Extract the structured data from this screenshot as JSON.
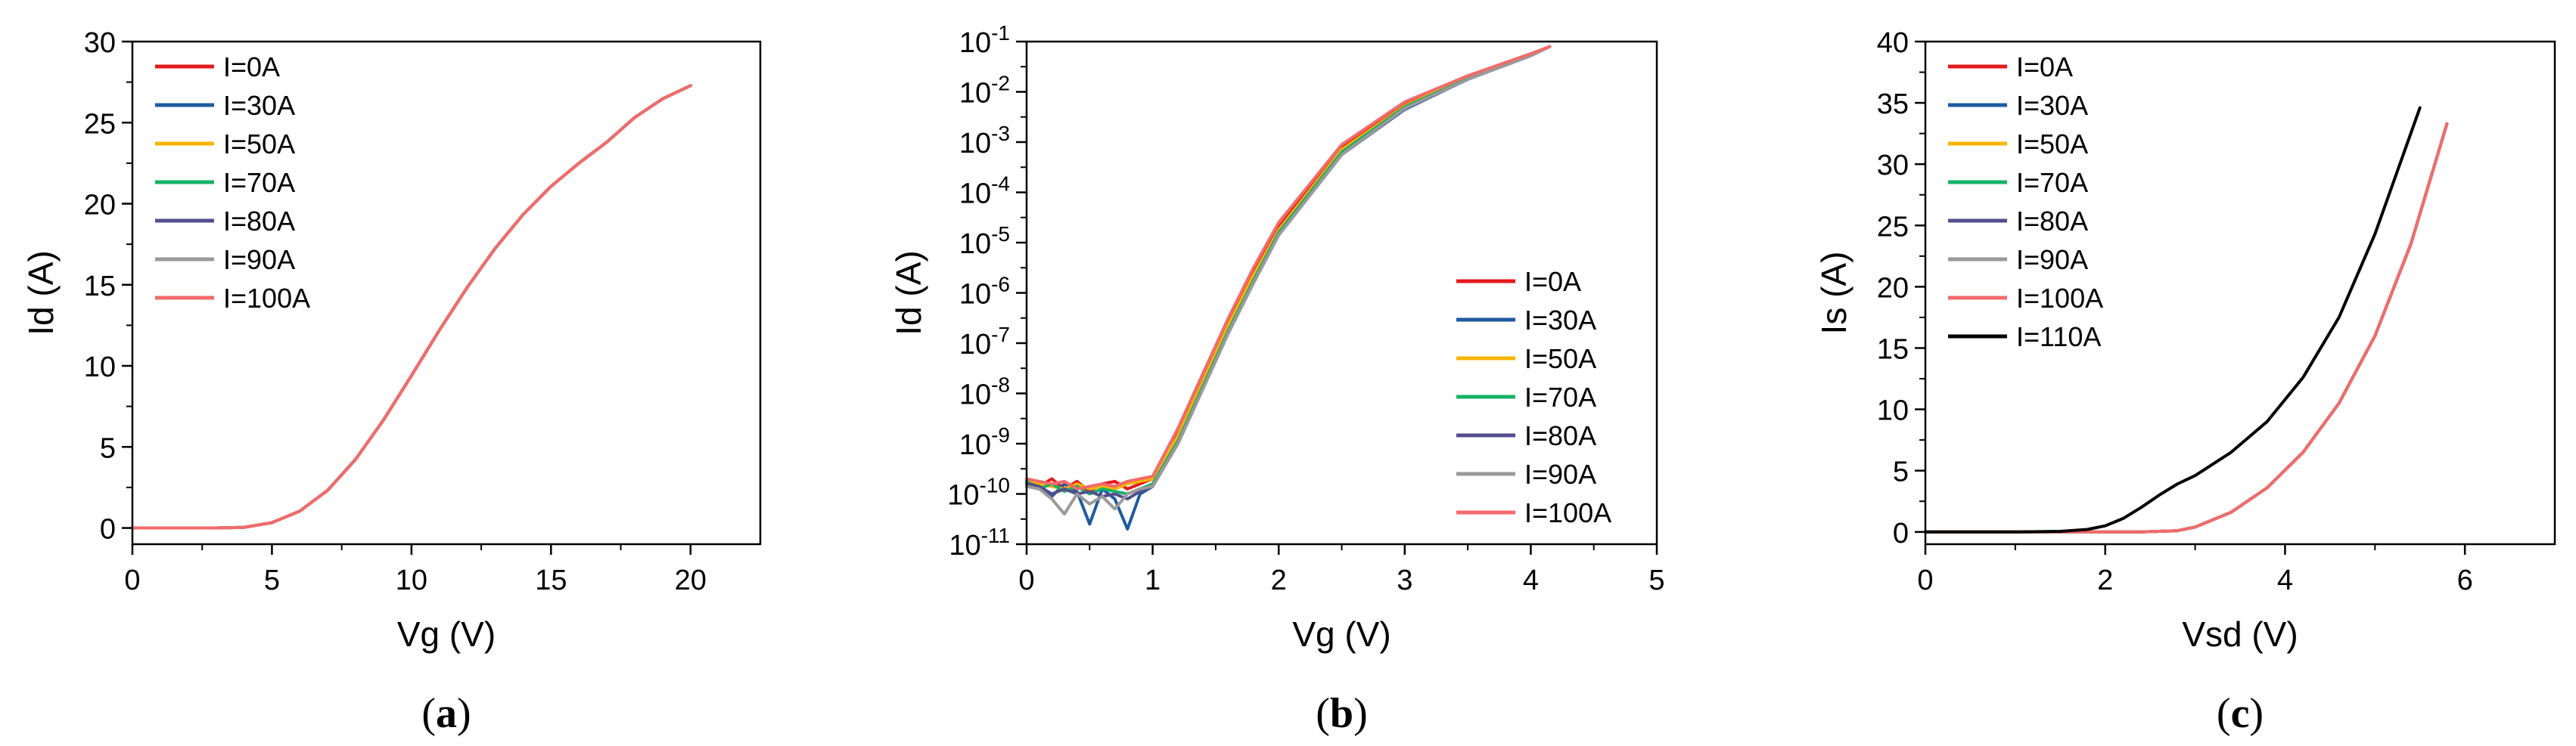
{
  "chart_data": [
    {
      "type": "line",
      "panel_label": "(a)",
      "title": "",
      "xlabel": "Vg (V)",
      "ylabel": "Id (A)",
      "xlim": [
        0,
        22.5
      ],
      "ylim": [
        -1,
        30
      ],
      "yscale": "linear",
      "x_ticks": [
        0,
        5,
        10,
        15,
        20
      ],
      "y_ticks": [
        0,
        5,
        10,
        15,
        20,
        25,
        30
      ],
      "x_tick_labels": [
        "0",
        "5",
        "10",
        "15",
        "20"
      ],
      "y_tick_labels": [
        "0",
        "5",
        "10",
        "15",
        "20",
        "25",
        "30"
      ],
      "legend_position": "top-left",
      "series": [
        {
          "name": "I=0A",
          "color": "#e41a1c",
          "x": [
            0,
            1,
            2,
            3,
            4,
            5,
            6,
            7,
            8,
            9,
            10,
            11,
            12,
            13,
            14,
            15,
            16,
            17,
            18,
            19,
            20
          ],
          "y": [
            0,
            0,
            0,
            0,
            0.04,
            0.33,
            1.04,
            2.33,
            4.24,
            6.67,
            9.4,
            12.2,
            14.85,
            17.25,
            19.33,
            21.07,
            22.5,
            23.8,
            25.32,
            26.47,
            27.28
          ]
        },
        {
          "name": "I=30A",
          "color": "#1f5aa0",
          "x": [
            0,
            1,
            2,
            3,
            4,
            5,
            6,
            7,
            8,
            9,
            10,
            11,
            12,
            13,
            14,
            15,
            16,
            17,
            18,
            19,
            20
          ],
          "y": [
            0,
            0,
            0,
            0,
            0.04,
            0.33,
            1.04,
            2.33,
            4.24,
            6.67,
            9.4,
            12.2,
            14.85,
            17.25,
            19.33,
            21.07,
            22.5,
            23.8,
            25.32,
            26.47,
            27.28
          ]
        },
        {
          "name": "I=50A",
          "color": "#f7b500",
          "x": [
            0,
            1,
            2,
            3,
            4,
            5,
            6,
            7,
            8,
            9,
            10,
            11,
            12,
            13,
            14,
            15,
            16,
            17,
            18,
            19,
            20
          ],
          "y": [
            0,
            0,
            0,
            0,
            0.04,
            0.33,
            1.04,
            2.33,
            4.24,
            6.67,
            9.4,
            12.2,
            14.85,
            17.25,
            19.33,
            21.07,
            22.5,
            23.8,
            25.32,
            26.47,
            27.28
          ]
        },
        {
          "name": "I=70A",
          "color": "#17b26a",
          "x": [
            0,
            1,
            2,
            3,
            4,
            5,
            6,
            7,
            8,
            9,
            10,
            11,
            12,
            13,
            14,
            15,
            16,
            17,
            18,
            19,
            20
          ],
          "y": [
            0,
            0,
            0,
            0,
            0.04,
            0.33,
            1.04,
            2.33,
            4.24,
            6.67,
            9.4,
            12.2,
            14.85,
            17.25,
            19.33,
            21.07,
            22.5,
            23.8,
            25.32,
            26.47,
            27.28
          ]
        },
        {
          "name": "I=80A",
          "color": "#554f8c",
          "x": [
            0,
            1,
            2,
            3,
            4,
            5,
            6,
            7,
            8,
            9,
            10,
            11,
            12,
            13,
            14,
            15,
            16,
            17,
            18,
            19,
            20
          ],
          "y": [
            0,
            0,
            0,
            0,
            0.04,
            0.33,
            1.04,
            2.33,
            4.24,
            6.67,
            9.4,
            12.2,
            14.85,
            17.25,
            19.33,
            21.07,
            22.5,
            23.8,
            25.32,
            26.47,
            27.28
          ]
        },
        {
          "name": "I=90A",
          "color": "#9a9a9a",
          "x": [
            0,
            1,
            2,
            3,
            4,
            5,
            6,
            7,
            8,
            9,
            10,
            11,
            12,
            13,
            14,
            15,
            16,
            17,
            18,
            19,
            20
          ],
          "y": [
            0,
            0,
            0,
            0,
            0.04,
            0.33,
            1.04,
            2.33,
            4.24,
            6.67,
            9.4,
            12.2,
            14.85,
            17.25,
            19.33,
            21.07,
            22.5,
            23.8,
            25.32,
            26.47,
            27.28
          ]
        },
        {
          "name": "I=100A",
          "color": "#f26b6b",
          "x": [
            0,
            1,
            2,
            3,
            4,
            5,
            6,
            7,
            8,
            9,
            10,
            11,
            12,
            13,
            14,
            15,
            16,
            17,
            18,
            19,
            20
          ],
          "y": [
            0,
            0,
            0,
            0,
            0.04,
            0.33,
            1.04,
            2.33,
            4.24,
            6.67,
            9.4,
            12.2,
            14.85,
            17.25,
            19.33,
            21.07,
            22.5,
            23.8,
            25.32,
            26.47,
            27.28
          ]
        }
      ]
    },
    {
      "type": "line",
      "panel_label": "(b)",
      "title": "",
      "xlabel": "Vg (V)",
      "ylabel": "Id (A)",
      "xlim": [
        0,
        5
      ],
      "ylim": [
        -11,
        -1
      ],
      "yscale": "log",
      "x_ticks": [
        0,
        1,
        2,
        3,
        4,
        5
      ],
      "y_ticks": [
        -11,
        -10,
        -9,
        -8,
        -7,
        -6,
        -5,
        -4,
        -3,
        -2,
        -1
      ],
      "x_tick_labels": [
        "0",
        "1",
        "2",
        "3",
        "4",
        "5"
      ],
      "y_tick_labels": [
        "10-11",
        "10-10",
        "10-9",
        "10-8",
        "10-7",
        "10-6",
        "10-5",
        "10-4",
        "10-3",
        "10-2",
        "10-1"
      ],
      "legend_position": "bottom-right",
      "series": [
        {
          "name": "I=0A",
          "color": "#e41a1c",
          "x": [
            0,
            0.1,
            0.2,
            0.3,
            0.4,
            0.5,
            0.6,
            0.7,
            0.8,
            0.9,
            1,
            1.2,
            1.4,
            1.6,
            1.8,
            2,
            2.5,
            3,
            3.5,
            4,
            4.15
          ],
          "log10_y": [
            -9.75,
            -9.85,
            -9.7,
            -9.9,
            -9.75,
            -9.95,
            -9.8,
            -9.75,
            -9.9,
            -9.8,
            -9.7,
            -8.8,
            -7.7,
            -6.6,
            -5.6,
            -4.7,
            -3.1,
            -2.25,
            -1.7,
            -1.25,
            -1.1
          ]
        },
        {
          "name": "I=30A",
          "color": "#1f5aa0",
          "x": [
            0,
            0.1,
            0.2,
            0.3,
            0.4,
            0.5,
            0.6,
            0.7,
            0.8,
            0.9,
            1,
            1.2,
            1.4,
            1.6,
            1.8,
            2,
            2.5,
            3,
            3.5,
            4,
            4.15
          ],
          "log10_y": [
            -9.8,
            -9.9,
            -10.05,
            -9.8,
            -9.95,
            -10.6,
            -9.9,
            -10.1,
            -10.7,
            -10.0,
            -9.85,
            -9.0,
            -7.9,
            -6.8,
            -5.8,
            -4.85,
            -3.25,
            -2.35,
            -1.75,
            -1.28,
            -1.1
          ]
        },
        {
          "name": "I=50A",
          "color": "#f7b500",
          "x": [
            0,
            0.1,
            0.2,
            0.3,
            0.4,
            0.5,
            0.6,
            0.7,
            0.8,
            0.9,
            1,
            1.2,
            1.4,
            1.6,
            1.8,
            2,
            2.5,
            3,
            3.5,
            4,
            4.15
          ],
          "log10_y": [
            -9.7,
            -9.8,
            -9.85,
            -9.9,
            -9.8,
            -9.9,
            -9.85,
            -9.9,
            -9.8,
            -9.75,
            -9.7,
            -8.85,
            -7.75,
            -6.65,
            -5.65,
            -4.75,
            -3.15,
            -2.28,
            -1.72,
            -1.26,
            -1.1
          ]
        },
        {
          "name": "I=70A",
          "color": "#17b26a",
          "x": [
            0,
            0.1,
            0.2,
            0.3,
            0.4,
            0.5,
            0.6,
            0.7,
            0.8,
            0.9,
            1,
            1.2,
            1.4,
            1.6,
            1.8,
            2,
            2.5,
            3,
            3.5,
            4,
            4.15
          ],
          "log10_y": [
            -9.75,
            -9.9,
            -9.8,
            -9.95,
            -9.85,
            -10.0,
            -9.9,
            -9.95,
            -10.0,
            -9.9,
            -9.8,
            -8.95,
            -7.85,
            -6.75,
            -5.75,
            -4.8,
            -3.2,
            -2.3,
            -1.74,
            -1.27,
            -1.1
          ]
        },
        {
          "name": "I=80A",
          "color": "#554f8c",
          "x": [
            0,
            0.1,
            0.2,
            0.3,
            0.4,
            0.5,
            0.6,
            0.7,
            0.8,
            0.9,
            1,
            1.2,
            1.4,
            1.6,
            1.8,
            2,
            2.5,
            3,
            3.5,
            4,
            4.15
          ],
          "log10_y": [
            -9.8,
            -9.85,
            -10.0,
            -9.9,
            -10.0,
            -9.95,
            -10.05,
            -10.0,
            -10.1,
            -9.95,
            -9.85,
            -9.0,
            -7.9,
            -6.8,
            -5.8,
            -4.85,
            -3.25,
            -2.33,
            -1.75,
            -1.28,
            -1.1
          ]
        },
        {
          "name": "I=90A",
          "color": "#9a9a9a",
          "x": [
            0,
            0.1,
            0.2,
            0.3,
            0.4,
            0.5,
            0.6,
            0.7,
            0.8,
            0.9,
            1,
            1.2,
            1.4,
            1.6,
            1.8,
            2,
            2.5,
            3,
            3.5,
            4,
            4.15
          ],
          "log10_y": [
            -9.85,
            -9.9,
            -10.1,
            -10.4,
            -10.0,
            -10.2,
            -10.05,
            -10.3,
            -10.0,
            -9.9,
            -9.85,
            -9.0,
            -7.9,
            -6.8,
            -5.8,
            -4.85,
            -3.25,
            -2.33,
            -1.75,
            -1.28,
            -1.1
          ]
        },
        {
          "name": "I=100A",
          "color": "#f26b6b",
          "x": [
            0,
            0.1,
            0.2,
            0.3,
            0.4,
            0.5,
            0.6,
            0.7,
            0.8,
            0.9,
            1,
            1.2,
            1.4,
            1.6,
            1.8,
            2,
            2.5,
            3,
            3.5,
            4,
            4.15
          ],
          "log10_y": [
            -9.7,
            -9.75,
            -9.8,
            -9.75,
            -9.9,
            -9.85,
            -9.8,
            -9.85,
            -9.75,
            -9.7,
            -9.65,
            -8.7,
            -7.6,
            -6.5,
            -5.5,
            -4.6,
            -3.05,
            -2.2,
            -1.68,
            -1.24,
            -1.1
          ]
        }
      ]
    },
    {
      "type": "line",
      "panel_label": "(c)",
      "title": "",
      "xlabel": "Vsd (V)",
      "ylabel": "Is (A)",
      "xlim": [
        0,
        7
      ],
      "ylim": [
        -1,
        40
      ],
      "yscale": "linear",
      "x_ticks": [
        0,
        2,
        4,
        6
      ],
      "y_ticks": [
        0,
        5,
        10,
        15,
        20,
        25,
        30,
        35,
        40
      ],
      "x_tick_labels": [
        "0",
        "2",
        "4",
        "6"
      ],
      "y_tick_labels": [
        "0",
        "5",
        "10",
        "15",
        "20",
        "25",
        "30",
        "35",
        "40"
      ],
      "legend_position": "top-left",
      "series": [
        {
          "name": "I=0A",
          "color": "#e41a1c",
          "x": [
            0,
            1,
            2,
            2.4,
            2.8,
            3,
            3.4,
            3.8,
            4.2,
            4.6,
            5,
            5.4,
            5.8
          ],
          "y": [
            0,
            0,
            0,
            0,
            0.1,
            0.4,
            1.6,
            3.6,
            6.5,
            10.5,
            16,
            23.5,
            33.3
          ]
        },
        {
          "name": "I=30A",
          "color": "#1f5aa0",
          "x": [
            0,
            1,
            2,
            2.4,
            2.8,
            3,
            3.4,
            3.8,
            4.2,
            4.6,
            5,
            5.4,
            5.8
          ],
          "y": [
            0,
            0,
            0,
            0,
            0.1,
            0.4,
            1.6,
            3.6,
            6.5,
            10.5,
            16,
            23.5,
            33.3
          ]
        },
        {
          "name": "I=50A",
          "color": "#f7b500",
          "x": [
            0,
            1,
            2,
            2.4,
            2.8,
            3,
            3.4,
            3.8,
            4.2,
            4.6,
            5,
            5.4,
            5.8
          ],
          "y": [
            0,
            0,
            0,
            0,
            0.1,
            0.4,
            1.6,
            3.6,
            6.5,
            10.5,
            16,
            23.5,
            33.3
          ]
        },
        {
          "name": "I=70A",
          "color": "#17b26a",
          "x": [
            0,
            1,
            2,
            2.4,
            2.8,
            3,
            3.4,
            3.8,
            4.2,
            4.6,
            5,
            5.4,
            5.8
          ],
          "y": [
            0,
            0,
            0,
            0,
            0.1,
            0.4,
            1.6,
            3.6,
            6.5,
            10.5,
            16,
            23.5,
            33.3
          ]
        },
        {
          "name": "I=80A",
          "color": "#554f8c",
          "x": [
            0,
            1,
            2,
            2.4,
            2.8,
            3,
            3.4,
            3.8,
            4.2,
            4.6,
            5,
            5.4,
            5.8
          ],
          "y": [
            0,
            0,
            0,
            0,
            0.1,
            0.4,
            1.6,
            3.6,
            6.5,
            10.5,
            16,
            23.5,
            33.3
          ]
        },
        {
          "name": "I=90A",
          "color": "#9a9a9a",
          "x": [
            0,
            1,
            2,
            2.4,
            2.8,
            3,
            3.4,
            3.8,
            4.2,
            4.6,
            5,
            5.4,
            5.8
          ],
          "y": [
            0,
            0,
            0,
            0,
            0.1,
            0.4,
            1.6,
            3.6,
            6.5,
            10.5,
            16,
            23.5,
            33.3
          ]
        },
        {
          "name": "I=100A",
          "color": "#f26b6b",
          "x": [
            0,
            1,
            2,
            2.4,
            2.8,
            3,
            3.4,
            3.8,
            4.2,
            4.6,
            5,
            5.4,
            5.8
          ],
          "y": [
            0,
            0,
            0,
            0,
            0.1,
            0.4,
            1.6,
            3.6,
            6.5,
            10.5,
            16,
            23.5,
            33.3
          ]
        },
        {
          "name": "I=110A",
          "color": "#000000",
          "x": [
            0,
            1,
            1.5,
            1.8,
            2,
            2.2,
            2.4,
            2.6,
            2.8,
            3,
            3.4,
            3.8,
            4.2,
            4.6,
            5,
            5.5
          ],
          "y": [
            0,
            0,
            0.05,
            0.2,
            0.5,
            1.1,
            2,
            3,
            3.9,
            4.6,
            6.5,
            9,
            12.6,
            17.5,
            24.3,
            34.6
          ]
        }
      ]
    }
  ]
}
